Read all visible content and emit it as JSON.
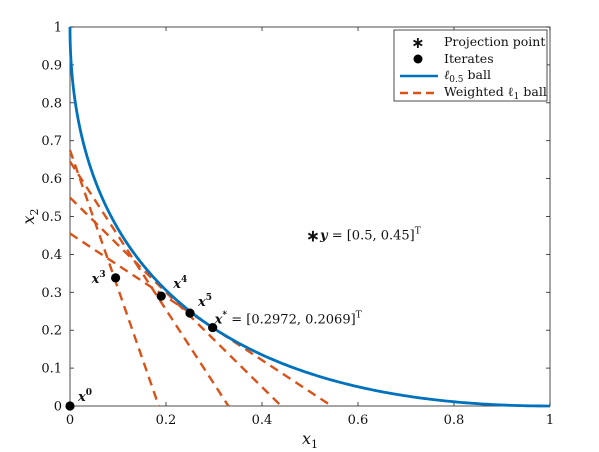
{
  "chart_data": {
    "type": "line",
    "xlabel": "x",
    "xlabel_sub": "1",
    "ylabel": "x",
    "ylabel_sub": "2",
    "xlim": [
      0,
      1
    ],
    "ylim": [
      0,
      1
    ],
    "xticks": [
      "0",
      "0.2",
      "0.4",
      "0.6",
      "0.8",
      "1"
    ],
    "xtick_values": [
      0,
      0.2,
      0.4,
      0.6,
      0.8,
      1
    ],
    "yticks": [
      "0",
      "0.1",
      "0.2",
      "0.3",
      "0.4",
      "0.5",
      "0.6",
      "0.7",
      "0.8",
      "0.9",
      "1"
    ],
    "ytick_values": [
      0,
      0.1,
      0.2,
      0.3,
      0.4,
      0.5,
      0.6,
      0.7,
      0.8,
      0.9,
      1
    ],
    "grid": false,
    "legend_position": "top-right",
    "legend": [
      {
        "label": "Projection point",
        "marker": "asterisk"
      },
      {
        "label": "Iterates",
        "marker": "dot"
      },
      {
        "label": "ℓ0.5 ball",
        "label_main": "ℓ",
        "label_sub": "0.5",
        "label_rest": " ball",
        "style": "solid",
        "color": "#0072BD"
      },
      {
        "label": "Weighted ℓ1 ball",
        "label_main": "Weighted ℓ",
        "label_sub": "1",
        "label_rest": " ball",
        "style": "dashed",
        "color": "#D95319"
      }
    ],
    "curve": {
      "name": "ℓ0.5 ball",
      "equation": "sqrt(x1) + sqrt(x2) = 1",
      "color": "#0072BD"
    },
    "weighted_l1_lines": [
      {
        "x_intercept": 0.185,
        "y_intercept": 0.675
      },
      {
        "x_intercept": 0.33,
        "y_intercept": 0.645
      },
      {
        "x_intercept": 0.44,
        "y_intercept": 0.55
      },
      {
        "x_intercept": 0.545,
        "y_intercept": 0.455
      }
    ],
    "weighted_l1_color": "#D95319",
    "iterates": [
      {
        "label": "x",
        "sup": "0",
        "x": 0.0,
        "y": 0.0
      },
      {
        "label": "x",
        "sup": "3",
        "x": 0.095,
        "y": 0.338
      },
      {
        "label": "x",
        "sup": "4",
        "x": 0.19,
        "y": 0.29
      },
      {
        "label": "x",
        "sup": "5",
        "x": 0.25,
        "y": 0.245
      },
      {
        "label": "x",
        "sup": "*",
        "x": 0.2972,
        "y": 0.2069,
        "value_text": " = [0.2972, 0.2069]",
        "value_sup": "T"
      }
    ],
    "projection_point": {
      "label": "y",
      "x": 0.5,
      "y": 0.45,
      "value_text": " = [0.5, 0.45]",
      "value_sup": "T"
    }
  }
}
